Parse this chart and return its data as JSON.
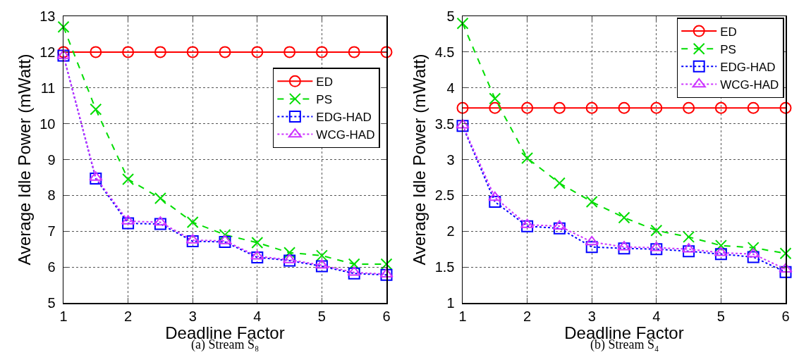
{
  "chart_data": [
    {
      "type": "line",
      "xlabel": "Deadline Factor",
      "ylabel": "Average Idle Power (mWatt)",
      "annotations": [
        "(a) Stream S₈"
      ],
      "x": [
        1,
        1.5,
        2,
        2.5,
        3,
        3.5,
        4,
        4.5,
        5,
        5.5,
        6
      ],
      "xlim": [
        1,
        6
      ],
      "xticks": [
        1,
        2,
        3,
        4,
        5,
        6
      ],
      "ylim": [
        5,
        13
      ],
      "yticks": [
        5,
        6,
        7,
        8,
        9,
        10,
        11,
        12,
        13
      ],
      "grid": true,
      "legend": "right",
      "series": [
        {
          "name": "ED",
          "color": "#ff0000",
          "marker": "circle",
          "line_style": "solid",
          "values": [
            12,
            12,
            12,
            12,
            12,
            12,
            12,
            12,
            12,
            12,
            12
          ]
        },
        {
          "name": "PS",
          "color": "#00dd00",
          "marker": "cross",
          "line_style": "dashed",
          "values": [
            12.7,
            10.4,
            8.45,
            7.92,
            7.25,
            6.9,
            6.68,
            6.4,
            6.32,
            6.08,
            6.08
          ]
        },
        {
          "name": "EDG-HAD",
          "color": "#0000ff",
          "marker": "square",
          "line_style": "dotted",
          "values": [
            11.9,
            8.47,
            7.22,
            7.2,
            6.72,
            6.7,
            6.27,
            6.18,
            6.02,
            5.82,
            5.78
          ]
        },
        {
          "name": "WCG-HAD",
          "color": "#cc33ff",
          "marker": "triangle",
          "line_style": "dotted",
          "values": [
            11.9,
            8.5,
            7.28,
            7.25,
            6.75,
            6.73,
            6.3,
            6.2,
            6.05,
            5.85,
            5.8
          ]
        }
      ]
    },
    {
      "type": "line",
      "xlabel": "Deadline Factor",
      "ylabel": "Average Idle Power (mWatt)",
      "annotations": [
        "(b) Stream S₄"
      ],
      "x": [
        1,
        1.5,
        2,
        2.5,
        3,
        3.5,
        4,
        4.5,
        5,
        5.5,
        6
      ],
      "xlim": [
        1,
        6
      ],
      "xticks": [
        1,
        2,
        3,
        4,
        5,
        6
      ],
      "ylim": [
        1,
        5
      ],
      "yticks": [
        1,
        1.5,
        2,
        2.5,
        3,
        3.5,
        4,
        4.5,
        5
      ],
      "grid": true,
      "legend": "top right",
      "series": [
        {
          "name": "ED",
          "color": "#ff0000",
          "marker": "circle",
          "line_style": "solid",
          "values": [
            3.72,
            3.72,
            3.72,
            3.72,
            3.72,
            3.72,
            3.72,
            3.72,
            3.72,
            3.72,
            3.72
          ]
        },
        {
          "name": "PS",
          "color": "#00dd00",
          "marker": "cross",
          "line_style": "dashed",
          "values": [
            4.9,
            3.85,
            3.02,
            2.67,
            2.41,
            2.19,
            2.01,
            1.92,
            1.8,
            1.77,
            1.69
          ]
        },
        {
          "name": "EDG-HAD",
          "color": "#0000ff",
          "marker": "square",
          "line_style": "dotted",
          "values": [
            3.47,
            2.41,
            2.07,
            2.04,
            1.78,
            1.76,
            1.75,
            1.72,
            1.68,
            1.64,
            1.43
          ]
        },
        {
          "name": "WCG-HAD",
          "color": "#cc33ff",
          "marker": "triangle",
          "line_style": "dotted",
          "values": [
            3.48,
            2.47,
            2.09,
            2.07,
            1.85,
            1.78,
            1.77,
            1.75,
            1.7,
            1.68,
            1.47
          ]
        }
      ]
    }
  ]
}
